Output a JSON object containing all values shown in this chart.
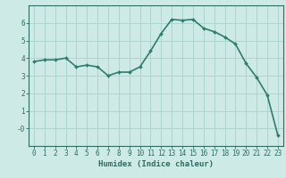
{
  "x": [
    0,
    1,
    2,
    3,
    4,
    5,
    6,
    7,
    8,
    9,
    10,
    11,
    12,
    13,
    14,
    15,
    16,
    17,
    18,
    19,
    20,
    21,
    22,
    23
  ],
  "y": [
    3.8,
    3.9,
    3.9,
    4.0,
    3.5,
    3.6,
    3.5,
    3.0,
    3.2,
    3.2,
    3.5,
    4.4,
    5.4,
    6.2,
    6.15,
    6.2,
    5.7,
    5.5,
    5.2,
    4.8,
    3.7,
    2.9,
    1.9,
    -0.4
  ],
  "line_color": "#2e7d6e",
  "marker": "D",
  "marker_size": 2.0,
  "line_width": 1.2,
  "bg_color": "#ceeae7",
  "grid_color": "#aed4d0",
  "xlabel": "Humidex (Indice chaleur)",
  "xlabel_fontsize": 6.5,
  "tick_fontsize": 5.5,
  "ylim": [
    -1.0,
    7.0
  ],
  "xlim": [
    -0.5,
    23.5
  ],
  "yticks": [
    0,
    1,
    2,
    3,
    4,
    5,
    6
  ],
  "ytick_labels": [
    "-0",
    "1",
    "2",
    "3",
    "4",
    "5",
    "6"
  ],
  "xticks": [
    0,
    1,
    2,
    3,
    4,
    5,
    6,
    7,
    8,
    9,
    10,
    11,
    12,
    13,
    14,
    15,
    16,
    17,
    18,
    19,
    20,
    21,
    22,
    23
  ],
  "axis_color": "#2e6b60"
}
